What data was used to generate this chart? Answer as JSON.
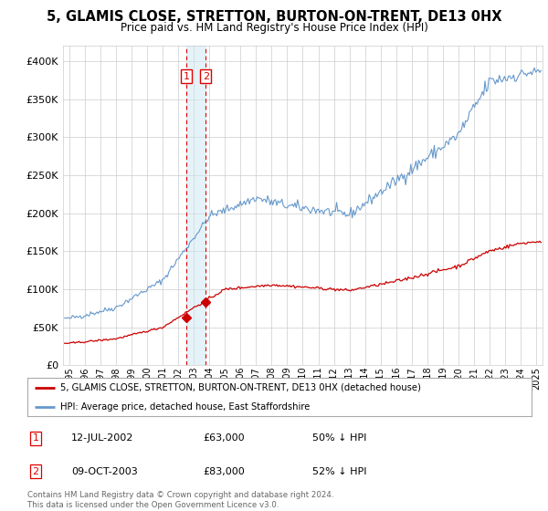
{
  "title": "5, GLAMIS CLOSE, STRETTON, BURTON-ON-TRENT, DE13 0HX",
  "subtitle": "Price paid vs. HM Land Registry's House Price Index (HPI)",
  "legend_label_red": "5, GLAMIS CLOSE, STRETTON, BURTON-ON-TRENT, DE13 0HX (detached house)",
  "legend_label_blue": "HPI: Average price, detached house, East Staffordshire",
  "footer": "Contains HM Land Registry data © Crown copyright and database right 2024.\nThis data is licensed under the Open Government Licence v3.0.",
  "transactions": [
    {
      "label": "1",
      "date": "12-JUL-2002",
      "price": 63000,
      "note": "50% ↓ HPI",
      "x_year": 2002.53
    },
    {
      "label": "2",
      "date": "09-OCT-2003",
      "price": 83000,
      "note": "52% ↓ HPI",
      "x_year": 2003.78
    }
  ],
  "vline_color": "#dd0000",
  "vline_style": "--",
  "vshade_color": "#cce8f4",
  "vshade_alpha": 0.5,
  "red_line_color": "#cc0000",
  "blue_line_color": "#6699cc",
  "background_color": "#ffffff",
  "grid_color": "#cccccc",
  "ylim": [
    0,
    420000
  ],
  "yticks": [
    0,
    50000,
    100000,
    150000,
    200000,
    250000,
    300000,
    350000,
    400000
  ],
  "xlim_start": 1994.6,
  "xlim_end": 2025.4
}
